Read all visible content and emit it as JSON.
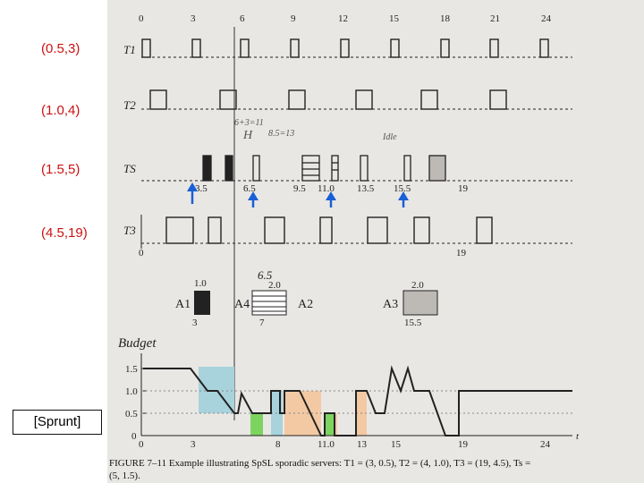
{
  "labels": {
    "l1": "(0.5,3)",
    "l2": "(1.0,4)",
    "l3": "(1.5,5)",
    "l4": "(4.5,19)",
    "citation": "[Sprunt]"
  },
  "axis_top": [
    "0",
    "3",
    "6",
    "9",
    "12",
    "15",
    "18",
    "21",
    "24"
  ],
  "rows": {
    "t1": "T1",
    "t2": "T2",
    "ts": "TS",
    "t3": "T3"
  },
  "ts_ticks": [
    "3.5",
    "6.5",
    "9.5",
    "11.0",
    "13.5",
    "15.5",
    "19"
  ],
  "t3_ticks": [
    "0",
    "19"
  ],
  "handwriting": {
    "h1": "6+3=11",
    "h2": "H",
    "h3": "8.5=13",
    "h4": "Idle",
    "h5": "6.5"
  },
  "aperiodic": {
    "a1": {
      "name": "A1",
      "size": "1.0",
      "time": "3"
    },
    "a4": {
      "name": "A4",
      "size": "2.0",
      "time": "7"
    },
    "a2": {
      "name": "A2",
      "size": "",
      "time": ""
    },
    "a3": {
      "name": "A3",
      "size": "2.0",
      "time": "15.5"
    }
  },
  "budget": {
    "title": "Budget",
    "y_ticks": [
      "1.5",
      "1.0",
      "0.5",
      "0"
    ],
    "x_ticks": [
      "0",
      "3",
      "8",
      "11.0",
      "13",
      "15",
      "19",
      "24"
    ],
    "t_label": "t"
  },
  "caption": {
    "line1": "FIGURE 7–11   Example illustrating SpSL sporadic servers: T1 = (3, 0.5), T2 = (4, 1.0), T3 = (19, 4.5), Ts =",
    "line2": "(5, 1.5)."
  },
  "colors": {
    "label_red": "#cc1111",
    "arrow_blue": "#1a5fd6",
    "shade_blue": "#a8d3dc",
    "shade_orange": "#f3c9a3",
    "shade_green": "#7dd35f"
  }
}
